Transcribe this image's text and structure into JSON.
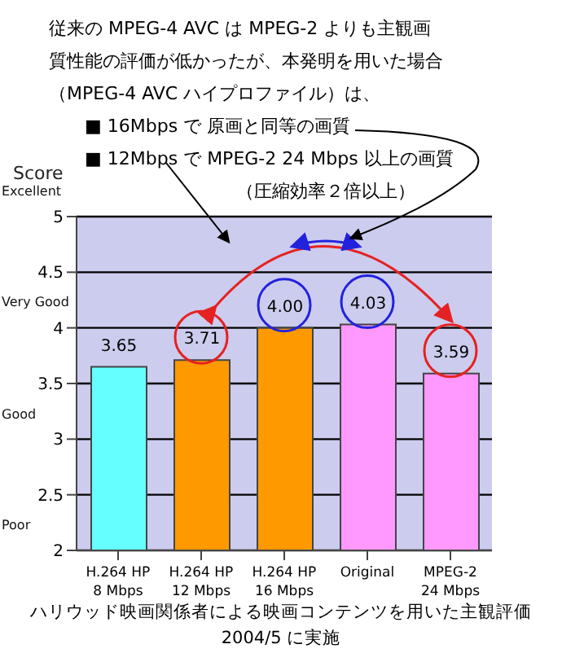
{
  "chart_data": {
    "type": "bar",
    "title": "従来の MPEG-4 AVC は MPEG-2 よりも主観画質性能の評価が低かったが、本発明を用いた場合（MPEG-4 AVC ハイプロファイル）は、",
    "ylabel": "Score",
    "categories": [
      "H.264 HP\n8 Mbps",
      "H.264 HP\n12 Mbps",
      "H.264 HP\n16 Mbps",
      "Original",
      "MPEG-2\n24 Mbps"
    ],
    "values": [
      3.65,
      3.71,
      4.0,
      4.03,
      3.59
    ],
    "value_labels": [
      "3.65",
      "3.71",
      "4.00",
      "4.03",
      "3.59"
    ],
    "colors": [
      "#66ffff",
      "#ff9900",
      "#ff9900",
      "#ff99ff",
      "#ff99ff"
    ],
    "ylim": [
      2,
      5
    ],
    "yticks": [
      2,
      2.5,
      3,
      3.5,
      4,
      4.5,
      5
    ],
    "grid": "y",
    "annotations": [
      "■ 16Mbps で 原画と同等の画質",
      "■ 12Mbps で MPEG-2 24 Mbps 以上の画質",
      "（圧縮効率２倍以上）",
      "Excellent",
      "Very Good",
      "Good",
      "Poor",
      "ハリウッド映画関係者による映画コンテンツを用いた主観評価",
      "2004/5 に実施"
    ]
  }
}
